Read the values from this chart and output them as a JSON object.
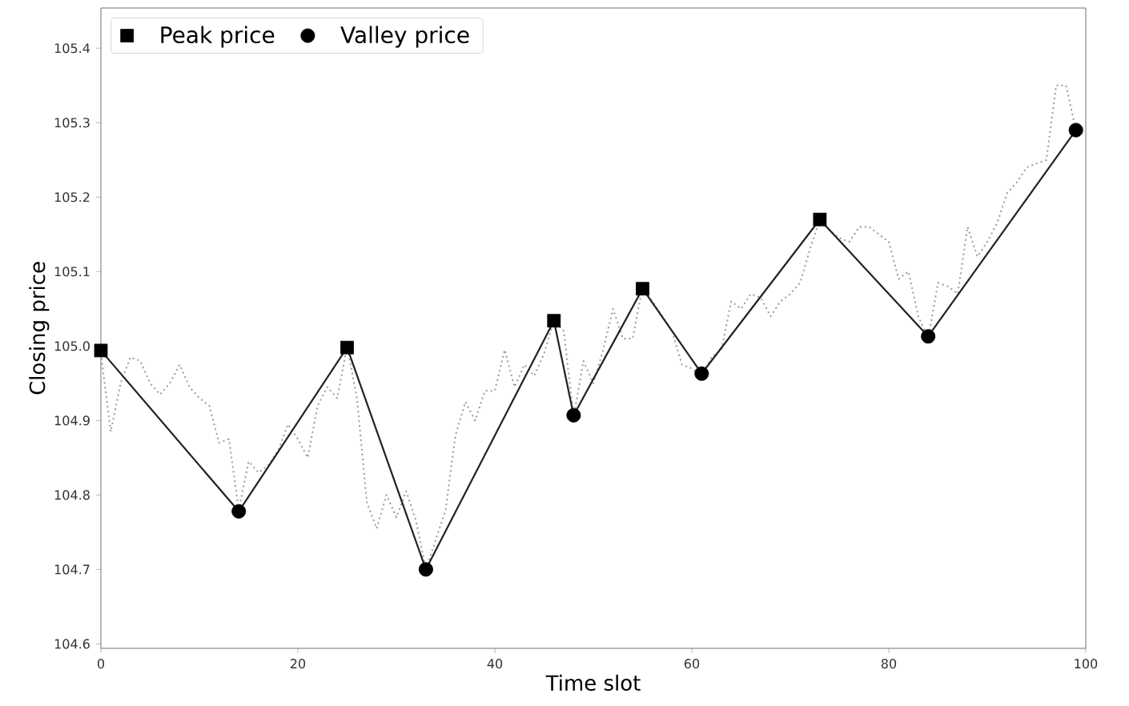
{
  "chart_data": {
    "type": "line",
    "xlabel": "Time slot",
    "ylabel": "Closing price",
    "xlim": [
      0,
      100
    ],
    "ylim": [
      104.594,
      105.454
    ],
    "xticks": [
      0,
      20,
      40,
      60,
      80,
      100
    ],
    "yticks": [
      104.6,
      104.7,
      104.8,
      104.9,
      {
        "value": 105.0,
        "label": "105.0"
      },
      105.1,
      105.2,
      105.3,
      105.4
    ],
    "grid": false,
    "legend": "top left",
    "series": [
      {
        "color": "#999999",
        "line_style": "dotted",
        "marker": "none",
        "x": [
          0,
          1,
          2,
          3,
          4,
          5,
          6,
          7,
          8,
          9,
          10,
          11,
          12,
          13,
          14,
          15,
          16,
          17,
          18,
          19,
          20,
          21,
          22,
          23,
          24,
          25,
          26,
          27,
          28,
          29,
          30,
          31,
          32,
          33,
          34,
          35,
          36,
          37,
          38,
          39,
          40,
          41,
          42,
          43,
          44,
          45,
          46,
          47,
          48,
          49,
          50,
          51,
          52,
          53,
          54,
          55,
          56,
          57,
          58,
          59,
          60,
          61,
          62,
          63,
          64,
          65,
          66,
          67,
          68,
          69,
          70,
          71,
          72,
          73,
          74,
          75,
          76,
          77,
          78,
          79,
          80,
          81,
          82,
          83,
          84,
          85,
          86,
          87,
          88,
          89,
          90,
          91,
          92,
          93,
          94,
          95,
          96,
          97,
          98,
          99
        ],
        "values": [
          104.99,
          104.885,
          104.95,
          104.985,
          104.98,
          104.95,
          104.935,
          104.95,
          104.975,
          104.945,
          104.93,
          104.92,
          104.87,
          104.875,
          104.78,
          104.845,
          104.83,
          104.84,
          104.86,
          104.895,
          104.875,
          104.85,
          104.92,
          104.945,
          104.93,
          105.0,
          104.93,
          104.79,
          104.755,
          104.8,
          104.77,
          104.805,
          104.765,
          104.7,
          104.74,
          104.78,
          104.88,
          104.925,
          104.9,
          104.94,
          104.94,
          104.995,
          104.945,
          104.975,
          104.96,
          104.99,
          105.035,
          105.02,
          104.905,
          104.98,
          104.95,
          104.995,
          105.05,
          105.01,
          105.01,
          105.08,
          105.06,
          105.04,
          105.02,
          104.975,
          104.97,
          104.96,
          104.985,
          104.995,
          105.06,
          105.05,
          105.07,
          105.065,
          105.04,
          105.06,
          105.07,
          105.085,
          105.13,
          105.17,
          105.155,
          105.145,
          105.14,
          105.16,
          105.16,
          105.15,
          105.14,
          105.09,
          105.1,
          105.04,
          105.01,
          105.085,
          105.08,
          105.07,
          105.16,
          105.12,
          105.14,
          105.165,
          105.205,
          105.22,
          105.24,
          105.245,
          105.25,
          105.35,
          105.35,
          105.29
        ]
      },
      {
        "color": "#222222",
        "line_style": "solid",
        "marker": "none",
        "x": [
          0,
          14,
          25,
          33,
          46,
          48,
          55,
          61,
          73,
          84,
          99
        ],
        "values": [
          104.994,
          104.778,
          104.998,
          104.7,
          105.034,
          104.907,
          105.077,
          104.963,
          105.17,
          105.013,
          105.29
        ]
      },
      {
        "type": "scatter",
        "name": "Peak price",
        "color": "#000000",
        "marker": "square",
        "x": [
          0,
          25,
          46,
          55,
          73
        ],
        "values": [
          104.994,
          104.998,
          105.034,
          105.077,
          105.17
        ]
      },
      {
        "type": "scatter",
        "name": "Valley price",
        "color": "#000000",
        "marker": "circle",
        "x": [
          14,
          33,
          48,
          61,
          84,
          99
        ],
        "values": [
          104.778,
          104.7,
          104.907,
          104.963,
          105.013,
          105.29
        ]
      }
    ]
  }
}
